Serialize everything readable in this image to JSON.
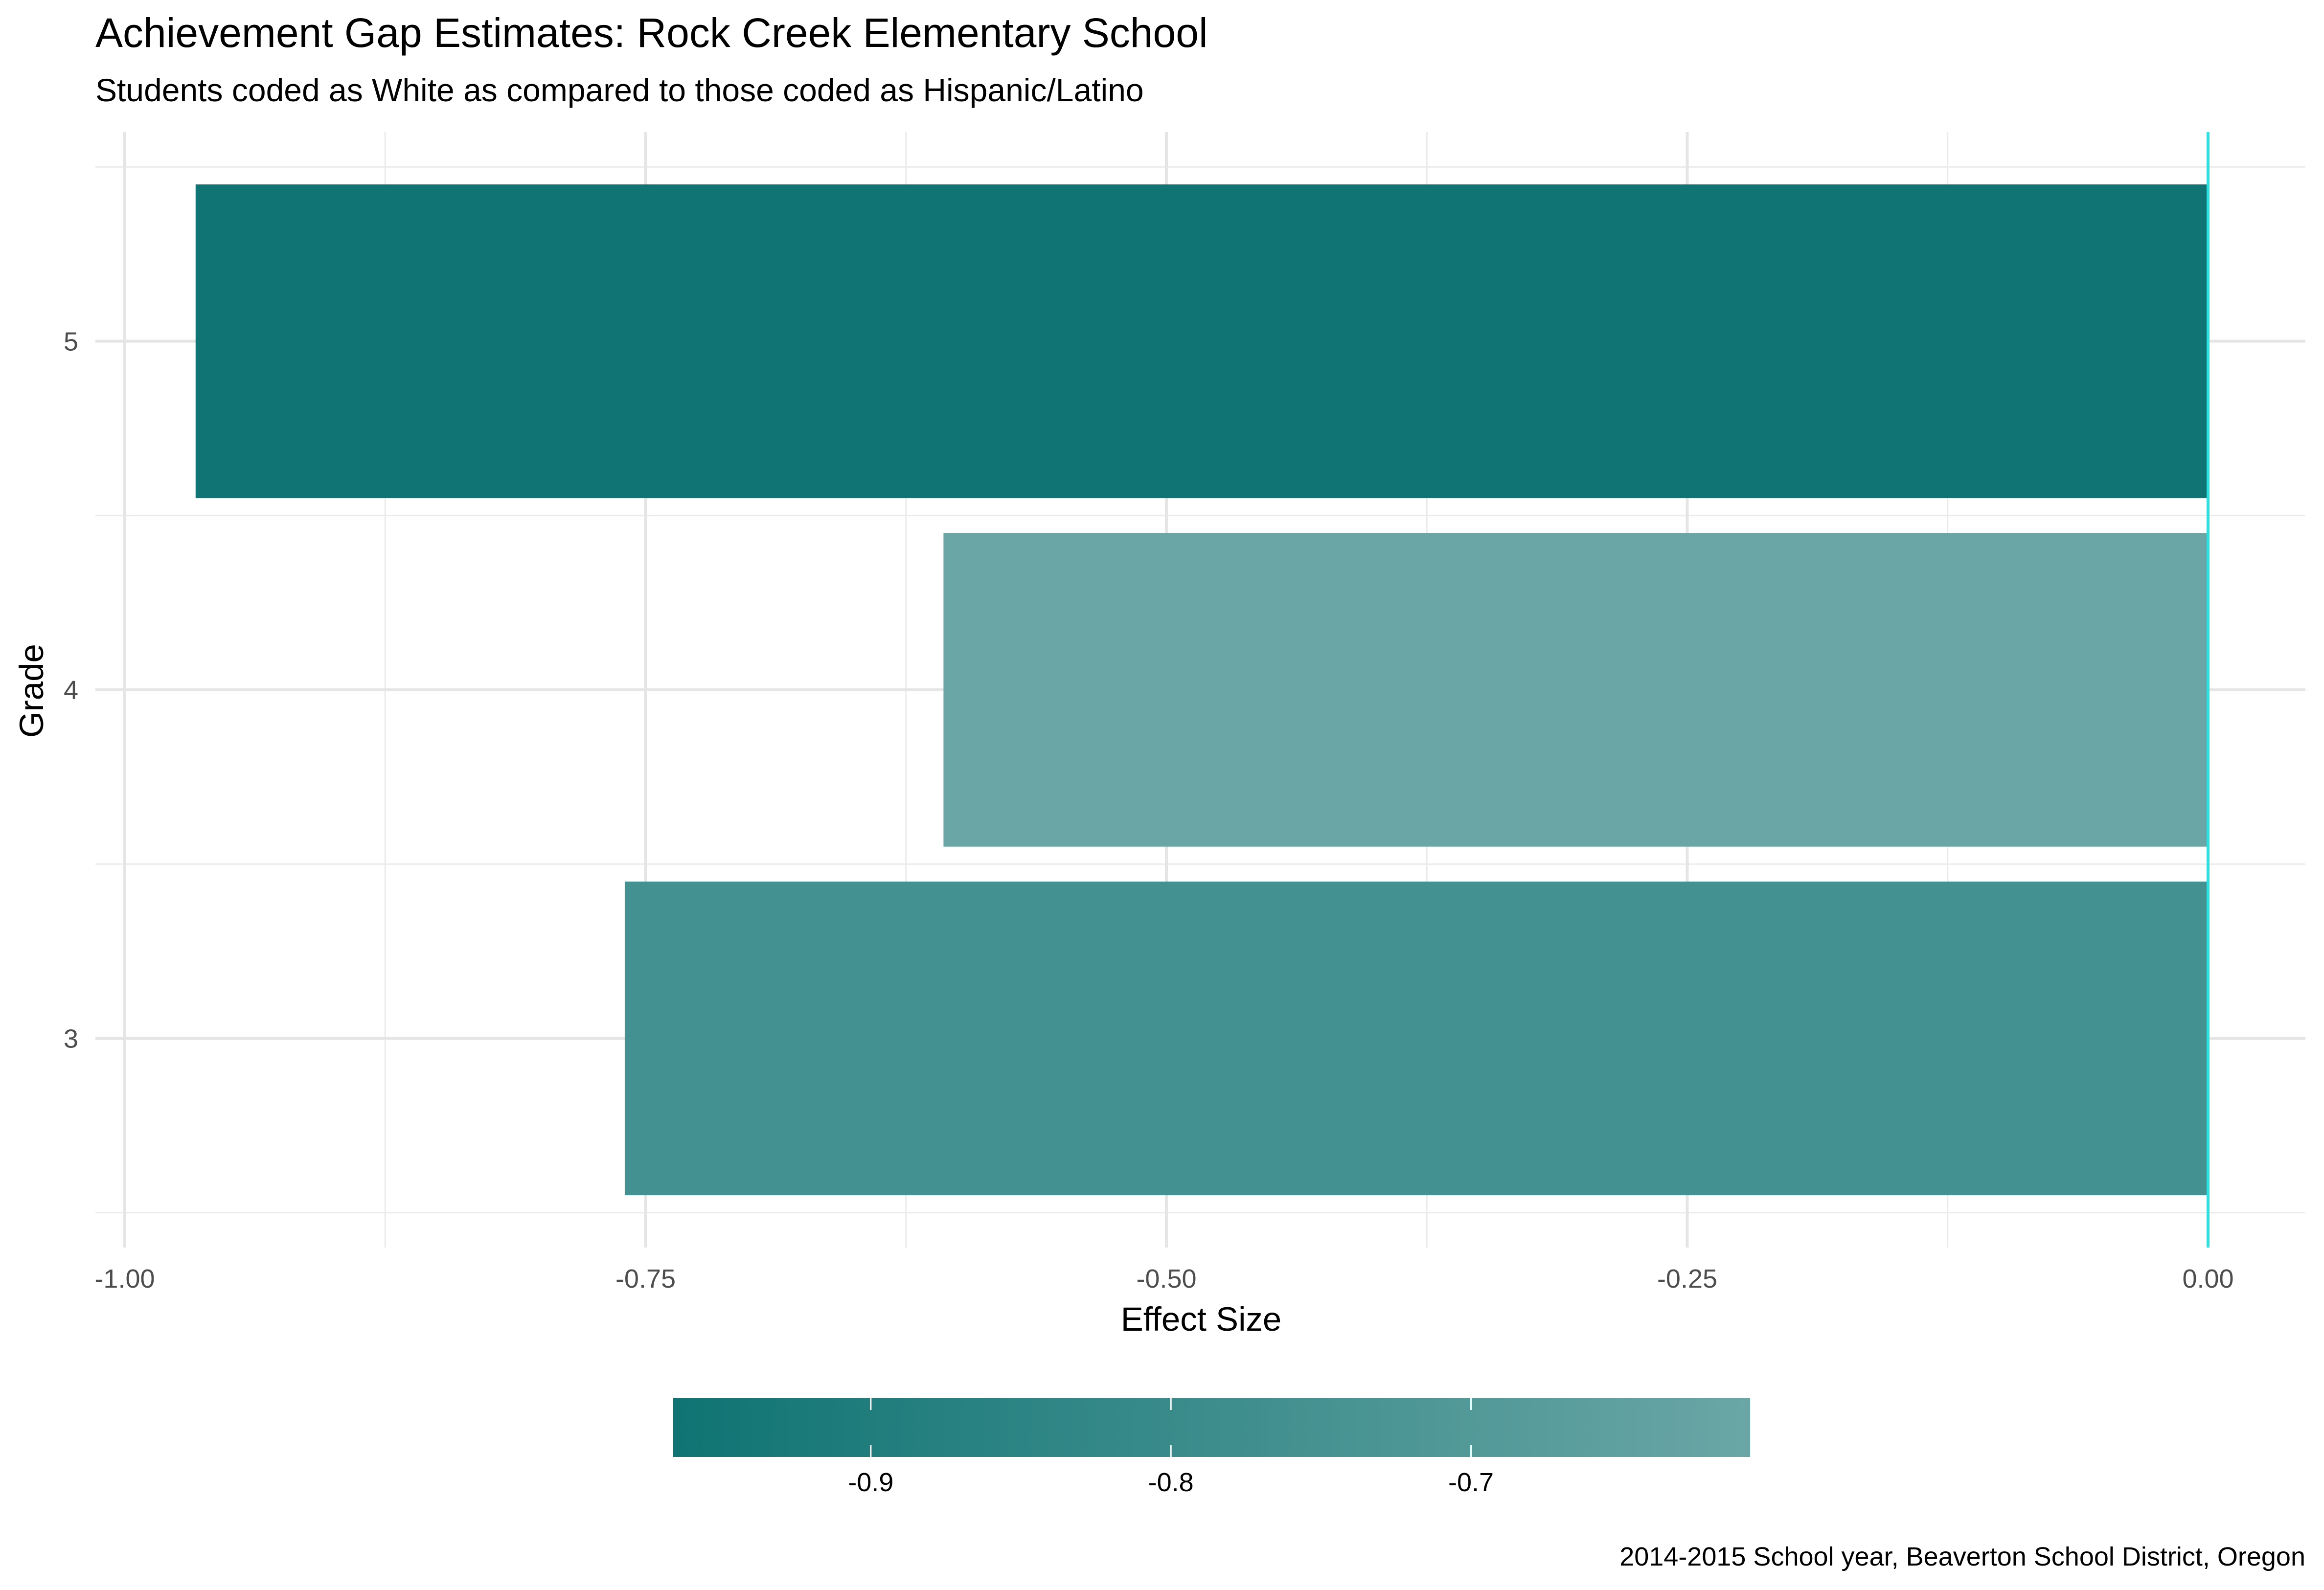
{
  "chart_data": {
    "type": "bar",
    "orientation": "horizontal",
    "title": "Achievement Gap Estimates: Rock Creek Elementary School",
    "subtitle": "Students coded as White as compared to those coded as Hispanic/Latino",
    "xlabel": "Effect Size",
    "ylabel": "Grade",
    "caption": "2014-2015 School year, Beaverton School District, Oregon",
    "categories": [
      "3",
      "4",
      "5"
    ],
    "values": [
      -0.76,
      -0.607,
      -0.966
    ],
    "xlim": [
      -1.0,
      0.0
    ],
    "x_ticks": [
      -1.0,
      -0.75,
      -0.5,
      -0.25,
      0.0
    ],
    "x_tick_labels": [
      "-1.00",
      "-0.75",
      "-0.50",
      "-0.25",
      "0.00"
    ],
    "reference_line": {
      "x": 0.0,
      "color": "#2ee0e0"
    },
    "grid": true,
    "legend": {
      "position": "bottom",
      "type": "colorbar",
      "range": [
        -0.966,
        -0.607
      ],
      "ticks": [
        -0.9,
        -0.8,
        -0.7
      ],
      "tick_labels": [
        "-0.9",
        "-0.8",
        "-0.7"
      ],
      "low_color": "#0f7473",
      "high_color": "#6aa6a6"
    }
  }
}
